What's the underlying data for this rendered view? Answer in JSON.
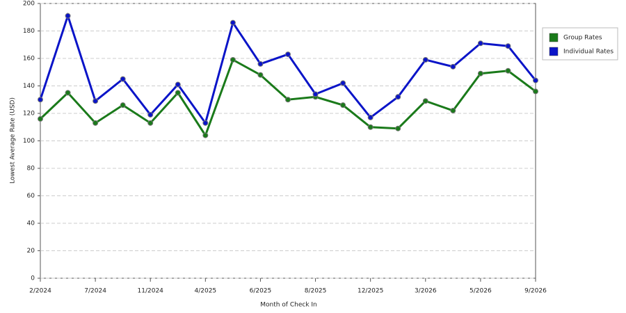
{
  "chart_data": {
    "type": "line",
    "x_label": "Month of Check In",
    "y_label": "Lowest Average Rate (USD)",
    "categories": [
      "2/2024",
      null,
      "7/2024",
      null,
      "11/2024",
      null,
      "4/2025",
      null,
      "6/2025",
      null,
      "8/2025",
      null,
      "12/2025",
      null,
      "3/2026",
      null,
      "5/2026",
      null,
      "9/2026"
    ],
    "series": [
      {
        "name": "Group Rates",
        "color": "#1a7a1a",
        "values": [
          116,
          135,
          113,
          126,
          113,
          135,
          104,
          159,
          148,
          130,
          132,
          126,
          110,
          109,
          129,
          122,
          149,
          151,
          136
        ]
      },
      {
        "name": "Individual Rates",
        "color": "#0a14c8",
        "values": [
          130,
          191,
          129,
          145,
          119,
          141,
          113,
          186,
          156,
          163,
          134,
          142,
          117,
          132,
          159,
          154,
          171,
          169,
          144
        ]
      }
    ],
    "ylim": [
      0,
      200
    ],
    "yticks": [
      0,
      20,
      40,
      60,
      80,
      100,
      120,
      140,
      160,
      180,
      200
    ],
    "grid": true,
    "legend": "right"
  }
}
